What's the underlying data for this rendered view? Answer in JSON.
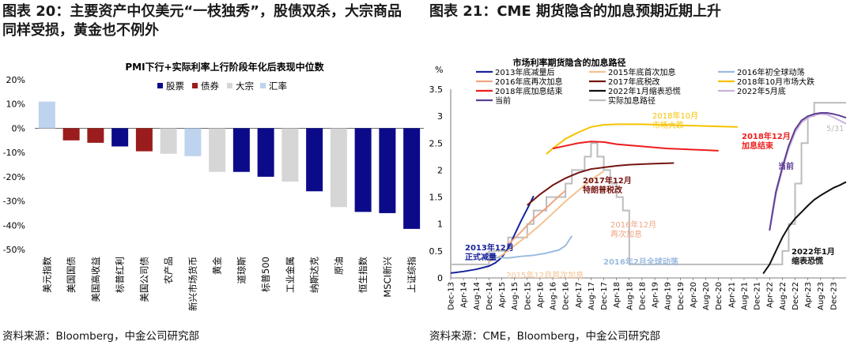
{
  "left_panel": {
    "title": "图表 20：主要资产中仅美元“一枝独秀”，股债双杀，大宗商品同样受损，黄金也不例外",
    "source": "资料来源：Bloomberg，中金公司研究部"
  },
  "right_panel": {
    "title": "图表 21：CME 期货隐含的加息预期近期上升",
    "source": "资料来源：CME，Bloomberg，中金公司研究部"
  },
  "colors": {
    "equity": "#0b0b8a",
    "bond": "#9b1c1c",
    "commodity": "#d6d6d6",
    "fx": "#bdd3ee",
    "s2013": "#16239a",
    "s2015": "#f5c190",
    "s2016a": "#9bbbe0",
    "s2016b": "#f0a583",
    "s2017": "#751410",
    "s2018oct": "#f5c200",
    "s2018dec": "#ee1c1c",
    "s2022jan": "#111111",
    "s2022may": "#c9b3dd",
    "current": "#5e3f92",
    "actual": "#bcbcbc"
  },
  "chart_data": [
    {
      "type": "bar",
      "title": "PMI下行+实际利率上行阶段年化后表现中位数",
      "categories": [
        "美元指数",
        "美国国债",
        "美国高收益",
        "标普红利",
        "美国公司债",
        "农产品",
        "新兴市场货币",
        "黄金",
        "道琼斯",
        "标普500",
        "工业金属",
        "纳斯达克",
        "原油",
        "恒生指数",
        "MSCI新兴",
        "上证综指"
      ],
      "values": [
        11,
        -5,
        -6,
        -7.5,
        -9.5,
        -10.5,
        -11.5,
        -18,
        -18,
        -20,
        -22,
        -26,
        -32.5,
        -34.5,
        -35,
        -41.5
      ],
      "groups": [
        "汇率",
        "债券",
        "债券",
        "股票",
        "债券",
        "大宗",
        "汇率",
        "大宗",
        "股票",
        "股票",
        "大宗",
        "股票",
        "大宗",
        "股票",
        "股票",
        "股票"
      ],
      "legend": [
        "股票",
        "债券",
        "大宗",
        "汇率"
      ],
      "y_ticks": [
        "20%",
        "10%",
        "0%",
        "-10%",
        "-20%",
        "-30%",
        "-40%",
        "-50%"
      ],
      "ylim": [
        -50,
        20
      ]
    },
    {
      "type": "line",
      "title": "市场利率期货隐含的加息路径",
      "ylabel": "%",
      "ylim": [
        0,
        3.5
      ],
      "y_ticks": [
        "0",
        "0.5",
        "1",
        "1.5",
        "2",
        "2.5",
        "3",
        "3.5"
      ],
      "x_ticks": [
        "Dec-13",
        "Apr-14",
        "Aug-14",
        "Dec-14",
        "Apr-15",
        "Aug-15",
        "Dec-15",
        "Apr-16",
        "Aug-16",
        "Dec-16",
        "Apr-17",
        "Aug-17",
        "Dec-17",
        "Apr-18",
        "Aug-18",
        "Dec-18",
        "Apr-19",
        "Aug-19",
        "Dec-19",
        "Apr-20",
        "Aug-20",
        "Dec-20",
        "Apr-21",
        "Aug-21",
        "Dec-21",
        "Apr-22",
        "Aug-22",
        "Dec-22",
        "Apr-23",
        "Aug-23",
        "Dec-23"
      ],
      "legend": [
        "2013年底减量后",
        "2015年底首次加息",
        "2016年初全球动荡",
        "2016年底再次加息",
        "2017年底税改",
        "2018年10月市场大跌",
        "2018年底加息结束",
        "2022年1月缩表恐慌",
        "2022年5月底",
        "当前",
        "实际加息路径"
      ],
      "series": [
        {
          "name": "2013年底减量后",
          "x": [
            0,
            2,
            4,
            6,
            7,
            8,
            9,
            10,
            11,
            12,
            13
          ],
          "y": [
            0.09,
            0.12,
            0.16,
            0.22,
            0.28,
            0.38,
            0.55,
            0.8,
            1.05,
            1.28,
            1.52
          ]
        },
        {
          "name": "2015年底首次加息",
          "x": [
            6,
            8,
            10,
            12,
            14,
            16,
            18,
            20,
            22,
            24
          ],
          "y": [
            0.3,
            0.42,
            0.6,
            0.78,
            0.98,
            1.2,
            1.42,
            1.62,
            1.82,
            1.98
          ]
        },
        {
          "name": "2016年初全球动荡",
          "x": [
            7,
            9,
            11,
            13,
            15,
            17,
            18,
            19
          ],
          "y": [
            0.38,
            0.37,
            0.4,
            0.42,
            0.46,
            0.52,
            0.6,
            0.78
          ]
        },
        {
          "name": "2016年底再次加息",
          "x": [
            9,
            11,
            13,
            15,
            17,
            18
          ],
          "y": [
            0.62,
            0.85,
            1.1,
            1.3,
            1.52,
            1.62
          ]
        },
        {
          "name": "2017年底税改",
          "x": [
            12,
            14,
            16,
            18,
            20,
            22,
            24,
            26,
            28,
            30,
            32,
            35
          ],
          "y": [
            1.35,
            1.55,
            1.72,
            1.85,
            1.95,
            2.02,
            2.05,
            2.08,
            2.1,
            2.11,
            2.12,
            2.13
          ]
        },
        {
          "name": "2018年10月市场大跌",
          "x": [
            15,
            16,
            18,
            20,
            22,
            24,
            26,
            28,
            30,
            33,
            36,
            39,
            42,
            45
          ],
          "y": [
            2.3,
            2.4,
            2.58,
            2.7,
            2.8,
            2.84,
            2.85,
            2.85,
            2.85,
            2.84,
            2.83,
            2.82,
            2.81,
            2.8
          ]
        },
        {
          "name": "2018年底加息结束",
          "x": [
            16,
            18,
            20,
            22,
            24,
            26,
            28,
            30,
            32,
            34,
            36,
            38,
            40,
            42
          ],
          "y": [
            2.4,
            2.45,
            2.5,
            2.53,
            2.52,
            2.48,
            2.46,
            2.44,
            2.42,
            2.4,
            2.39,
            2.38,
            2.37,
            2.36
          ]
        },
        {
          "name": "2022年1月缩表恐慌",
          "x": [
            49,
            50,
            51,
            52,
            53,
            54,
            55,
            56,
            57,
            58,
            59,
            60,
            61,
            62
          ],
          "y": [
            0.08,
            0.25,
            0.5,
            0.75,
            0.95,
            1.1,
            1.22,
            1.34,
            1.45,
            1.53,
            1.6,
            1.67,
            1.72,
            1.78
          ]
        },
        {
          "name": "2022年5月底",
          "x": [
            50,
            50.5,
            51,
            52,
            53,
            54,
            55,
            56,
            57,
            58,
            59,
            60,
            61,
            62
          ],
          "y": [
            0.88,
            1.2,
            1.55,
            2.0,
            2.4,
            2.7,
            2.88,
            2.97,
            3.02,
            3.04,
            3.03,
            2.98,
            2.92,
            2.86
          ]
        },
        {
          "name": "当前",
          "x": [
            50,
            50.5,
            51,
            52,
            53,
            54,
            55,
            56,
            57,
            58,
            59,
            60,
            61,
            62
          ],
          "y": [
            0.88,
            1.25,
            1.6,
            2.05,
            2.45,
            2.75,
            2.92,
            3.0,
            3.04,
            3.06,
            3.06,
            3.04,
            3.01,
            2.97
          ]
        }
      ],
      "actual_path": {
        "name": "实际加息路径",
        "x": [
          0,
          6,
          6,
          9,
          9,
          12,
          12,
          13,
          13,
          15,
          15,
          18,
          18,
          19,
          19,
          21,
          21,
          22,
          22,
          23,
          23,
          24,
          24,
          25,
          25,
          26,
          26,
          27,
          27,
          28,
          28,
          29,
          29,
          52,
          52,
          53,
          53,
          54,
          54,
          55,
          55,
          56,
          56,
          57,
          57,
          58,
          58,
          59,
          59,
          62
        ],
        "y": [
          0.25,
          0.25,
          0.5,
          0.5,
          0.75,
          0.75,
          1.0,
          1.0,
          1.25,
          1.25,
          1.5,
          1.5,
          1.75,
          1.75,
          2.0,
          2.0,
          2.25,
          2.25,
          2.5,
          2.5,
          2.25,
          2.25,
          2.0,
          2.0,
          1.75,
          1.75,
          1.5,
          1.5,
          1.25,
          1.25,
          0.25,
          0.25,
          0.25,
          0.25,
          0.5,
          0.5,
          1.0,
          1.0,
          1.75,
          1.75,
          2.5,
          2.5,
          3.0,
          3.0,
          3.25,
          3.25,
          3.25,
          3.25,
          3.25,
          3.25
        ]
      },
      "annotations": {
        "a2013": [
          "2013年12月",
          "正式减量"
        ],
        "a2015": "2015年12月首次加息",
        "a2016a": "2016年2月全球动荡",
        "a2016b": [
          "2016年12月",
          "再次加息"
        ],
        "a2017": [
          "2017年12月",
          "特朗普税改"
        ],
        "a2018oct": [
          "2018年10月",
          "市场大跌"
        ],
        "a2018dec": [
          "2018年12月",
          "加息结束"
        ],
        "a2022jan": [
          "2022年1月",
          "缩表恐慌"
        ],
        "current": "当前",
        "date_label": "5/31"
      }
    }
  ]
}
